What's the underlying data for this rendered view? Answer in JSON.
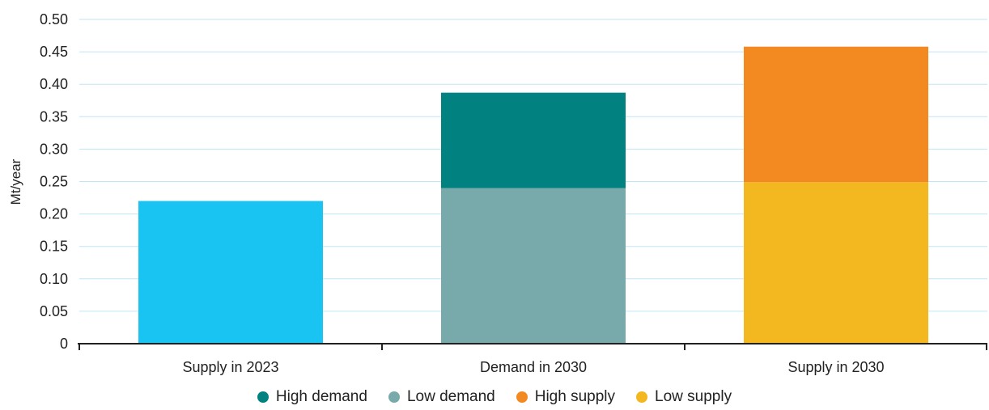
{
  "chart_data": {
    "type": "bar",
    "stacked": true,
    "ylabel": "Mt/year",
    "ylim": [
      0,
      0.5
    ],
    "yticks": [
      "0",
      "0.05",
      "0.10",
      "0.15",
      "0.20",
      "0.25",
      "0.30",
      "0.35",
      "0.40",
      "0.45",
      "0.50"
    ],
    "ytick_values": [
      0,
      0.05,
      0.1,
      0.15,
      0.2,
      0.25,
      0.3,
      0.35,
      0.4,
      0.45,
      0.5
    ],
    "grid": true,
    "categories": [
      "Supply in 2023",
      "Demand in 2030",
      "Supply in 2030"
    ],
    "segments": [
      [
        {
          "series": "Supply in 2023",
          "value": 0.22,
          "color": "#19C3F2"
        }
      ],
      [
        {
          "series": "Low demand",
          "value": 0.24,
          "color": "#78AAAB"
        },
        {
          "series": "High demand",
          "value": 0.147,
          "color": "#018281"
        }
      ],
      [
        {
          "series": "Low supply",
          "value": 0.249,
          "color": "#F3B71F"
        },
        {
          "series": "High supply",
          "value": 0.209,
          "color": "#F28A21"
        }
      ]
    ],
    "legend": [
      {
        "name": "High demand",
        "color": "#018281"
      },
      {
        "name": "Low demand",
        "color": "#78AAAB"
      },
      {
        "name": "High supply",
        "color": "#F28A21"
      },
      {
        "name": "Low supply",
        "color": "#F3B71F"
      }
    ],
    "legend_position": "bottom"
  }
}
